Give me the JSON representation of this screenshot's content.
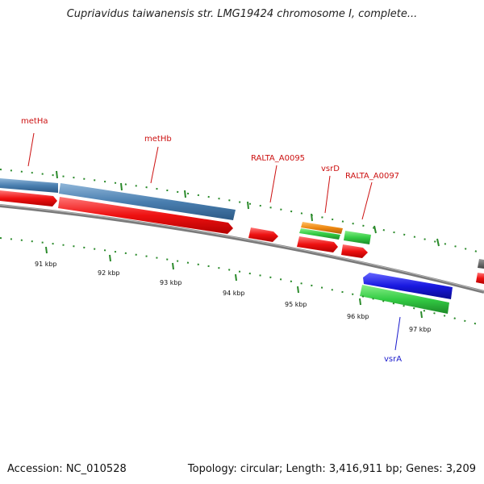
{
  "title": "Cupriavidus taiwanensis str. LMG19424 chromosome I, complete...",
  "footer": {
    "accession": "Accession: NC_010528",
    "stats": "Topology: circular; Length: 3,416,911 bp; Genes: 3,209"
  },
  "colors": {
    "backbone": "#808080",
    "gene_blue": "#4a7fb0",
    "gene_red": "#ee1111",
    "gene_green": "#33cc44",
    "gene_orange": "#ee8811",
    "gene_darkblue": "#1818e0",
    "gene_gray": "#555555",
    "tick": "#2a8a2a",
    "label_red": "#cc1111",
    "label_blue": "#1a1acc"
  },
  "scale_labels": [
    "91 kbp",
    "92 kbp",
    "93 kbp",
    "94 kbp",
    "95 kbp",
    "96 kbp",
    "97 kbp"
  ],
  "gene_labels": [
    {
      "name": "metHa",
      "color": "label_red"
    },
    {
      "name": "metHb",
      "color": "label_red"
    },
    {
      "name": "RALTA_A0095",
      "color": "label_red"
    },
    {
      "name": "vsrD",
      "color": "label_red"
    },
    {
      "name": "RALTA_A0097",
      "color": "label_red"
    },
    {
      "name": "vsrA",
      "color": "label_blue"
    }
  ]
}
